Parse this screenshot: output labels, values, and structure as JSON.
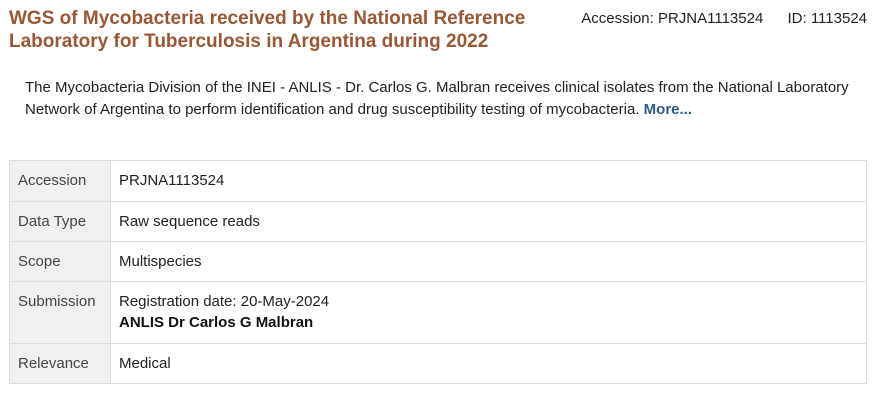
{
  "header": {
    "title": "WGS of Mycobacteria received by the National Reference Laboratory for Tuberculosis in Argentina during 2022",
    "accession_label": "Accession:",
    "accession_value": "PRJNA1113524",
    "id_label": "ID:",
    "id_value": "1113524"
  },
  "description": {
    "text": "The Mycobacteria Division of the INEI - ANLIS - Dr. Carlos G. Malbran receives clinical isolates from the National Laboratory Network of Argentina to perform identification and drug susceptibility testing of mycobacteria.",
    "more_label": "More..."
  },
  "summary": {
    "accession": {
      "label": "Accession",
      "value": "PRJNA1113524"
    },
    "data_type": {
      "label": "Data Type",
      "value": "Raw sequence reads"
    },
    "scope": {
      "label": "Scope",
      "value": "Multispecies"
    },
    "submission": {
      "label": "Submission",
      "registration": "Registration date: 20-May-2024",
      "organization": "ANLIS Dr Carlos G Malbran"
    },
    "relevance": {
      "label": "Relevance",
      "value": "Medical"
    }
  },
  "colors": {
    "title": "#985735",
    "link": "#2c5a8c",
    "label_bg": "#f0f0f0",
    "border": "#dddddd"
  }
}
